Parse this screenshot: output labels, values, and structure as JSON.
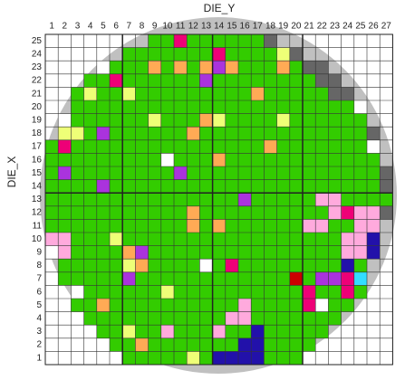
{
  "chart_data": {
    "type": "heatmap",
    "x_label": "DIE_Y",
    "y_label": "DIE_X",
    "x_categories": [
      1,
      2,
      3,
      4,
      5,
      6,
      7,
      8,
      9,
      10,
      11,
      12,
      13,
      14,
      15,
      16,
      17,
      18,
      19,
      20,
      21,
      22,
      23,
      24,
      25,
      26,
      27
    ],
    "y_categories": [
      25,
      24,
      23,
      22,
      21,
      20,
      19,
      18,
      17,
      16,
      15,
      14,
      13,
      12,
      11,
      10,
      9,
      8,
      7,
      6,
      5,
      4,
      3,
      2,
      1
    ],
    "wafer_color": "#c0c0c0",
    "cells": [
      [
        null,
        null,
        null,
        null,
        null,
        null,
        null,
        null,
        "#3c0",
        "#3c0",
        "#e07",
        "#3c0",
        "#3c0",
        "#3c0",
        "#3c0",
        "#3c0",
        "#3c0",
        "#666",
        null,
        null,
        null,
        null,
        null,
        null,
        null,
        null,
        null
      ],
      [
        null,
        null,
        null,
        null,
        null,
        null,
        "#3c0",
        "#3c0",
        "#3c0",
        "#3c0",
        "#3c0",
        "#3c0",
        "#3c0",
        "#e07",
        "#3c0",
        "#3c0",
        "#3c0",
        "#3c0",
        "#ef7",
        "#666",
        null,
        null,
        null,
        null,
        null,
        null,
        null
      ],
      [
        null,
        null,
        null,
        null,
        "#fff",
        "#3c0",
        "#3c0",
        "#3c0",
        "#fa5",
        "#3c0",
        "#fa5",
        "#3c0",
        "#fa5",
        "#a3d",
        "#fa5",
        "#3c0",
        "#3c0",
        "#3c0",
        "#fa5",
        "#3c0",
        "#666",
        "#666",
        null,
        null,
        null,
        null,
        null
      ],
      [
        null,
        null,
        null,
        "#3c0",
        "#3c0",
        "#e07",
        "#3c0",
        "#3c0",
        "#3c0",
        "#3c0",
        "#3c0",
        "#3c0",
        "#a3d",
        "#3c0",
        "#3c0",
        "#3c0",
        "#3c0",
        "#3c0",
        "#3c0",
        "#3c0",
        "#3c0",
        "#666",
        "#666",
        null,
        null,
        null,
        null
      ],
      [
        null,
        null,
        "#3c0",
        "#ef7",
        "#3c0",
        "#3c0",
        "#ef7",
        "#3c0",
        "#3c0",
        "#3c0",
        "#3c0",
        "#3c0",
        "#3c0",
        "#3c0",
        "#3c0",
        "#3c0",
        "#fa5",
        "#3c0",
        "#3c0",
        "#3c0",
        "#3c0",
        "#3c0",
        "#666",
        "#666",
        null,
        null,
        null
      ],
      [
        null,
        null,
        "#3c0",
        "#3c0",
        "#3c0",
        "#3c0",
        "#3c0",
        "#3c0",
        "#3c0",
        "#3c0",
        "#3c0",
        "#3c0",
        "#3c0",
        "#3c0",
        "#3c0",
        "#3c0",
        "#3c0",
        "#3c0",
        "#3c0",
        "#3c0",
        "#3c0",
        "#3c0",
        "#3c0",
        "#3c0",
        "#fff",
        null,
        null
      ],
      [
        null,
        "#fff",
        "#3c0",
        "#3c0",
        "#3c0",
        "#3c0",
        "#3c0",
        "#3c0",
        "#ef7",
        "#3c0",
        "#3c0",
        "#3c0",
        "#fa5",
        "#ef7",
        "#3c0",
        "#3c0",
        "#3c0",
        "#3c0",
        "#ef7",
        "#3c0",
        "#3c0",
        "#3c0",
        "#3c0",
        "#3c0",
        "#3c0",
        null,
        null
      ],
      [
        null,
        "#ef7",
        "#ef7",
        "#3c0",
        "#a3d",
        "#3c0",
        "#3c0",
        "#3c0",
        "#3c0",
        "#3c0",
        "#3c0",
        "#fa5",
        "#3c0",
        "#3c0",
        "#3c0",
        "#3c0",
        "#3c0",
        "#3c0",
        "#3c0",
        "#3c0",
        "#3c0",
        "#3c0",
        "#3c0",
        "#3c0",
        "#3c0",
        "#666",
        null
      ],
      [
        "#3c0",
        "#e07",
        "#3c0",
        "#3c0",
        "#3c0",
        "#3c0",
        "#3c0",
        "#3c0",
        "#3c0",
        "#3c0",
        "#3c0",
        "#3c0",
        "#3c0",
        "#3c0",
        "#3c0",
        "#3c0",
        "#3c0",
        "#fa5",
        "#3c0",
        "#3c0",
        "#3c0",
        "#3c0",
        "#3c0",
        "#3c0",
        "#3c0",
        "#fff",
        null
      ],
      [
        "#3c0",
        "#3c0",
        "#3c0",
        "#3c0",
        "#3c0",
        "#3c0",
        "#3c0",
        "#3c0",
        "#3c0",
        "#fff",
        "#3c0",
        "#3c0",
        "#3c0",
        "#fa5",
        "#3c0",
        "#3c0",
        "#3c0",
        "#3c0",
        "#3c0",
        "#3c0",
        "#3c0",
        "#3c0",
        "#3c0",
        "#3c0",
        "#3c0",
        "#3c0",
        null
      ],
      [
        "#3c0",
        "#a3d",
        "#3c0",
        "#3c0",
        "#3c0",
        "#3c0",
        "#3c0",
        "#3c0",
        "#3c0",
        "#3c0",
        "#a3d",
        "#3c0",
        "#3c0",
        "#3c0",
        "#3c0",
        "#3c0",
        "#3c0",
        "#3c0",
        "#3c0",
        "#3c0",
        "#3c0",
        "#3c0",
        "#3c0",
        "#3c0",
        "#3c0",
        "#3c0",
        "#666"
      ],
      [
        "#3c0",
        "#3c0",
        "#3c0",
        "#3c0",
        "#a3d",
        "#3c0",
        "#3c0",
        "#3c0",
        "#3c0",
        "#3c0",
        "#3c0",
        "#3c0",
        "#3c0",
        "#3c0",
        "#3c0",
        "#3c0",
        "#3c0",
        "#3c0",
        "#3c0",
        "#3c0",
        "#3c0",
        "#3c0",
        "#3c0",
        "#3c0",
        "#3c0",
        "#3c0",
        "#666"
      ],
      [
        "#3c0",
        "#3c0",
        "#3c0",
        "#3c0",
        "#3c0",
        "#3c0",
        "#3c0",
        "#3c0",
        "#3c0",
        "#3c0",
        "#3c0",
        "#3c0",
        "#3c0",
        "#3c0",
        "#3c0",
        "#a3d",
        "#3c0",
        "#3c0",
        "#3c0",
        "#3c0",
        "#3c0",
        "#fad",
        "#fad",
        "#3c0",
        "#3c0",
        "#3c0",
        "#3c0"
      ],
      [
        "#3c0",
        "#3c0",
        "#3c0",
        "#3c0",
        "#3c0",
        "#3c0",
        "#3c0",
        "#3c0",
        "#3c0",
        "#3c0",
        "#3c0",
        "#fa5",
        "#3c0",
        "#3c0",
        "#3c0",
        "#3c0",
        "#3c0",
        "#3c0",
        "#3c0",
        "#3c0",
        "#3c0",
        "#3c0",
        "#fad",
        "#e07",
        "#fad",
        "#fad",
        "#666"
      ],
      [
        "#3c0",
        "#3c0",
        "#3c0",
        "#3c0",
        "#3c0",
        "#3c0",
        "#3c0",
        "#3c0",
        "#3c0",
        "#3c0",
        "#3c0",
        "#fa5",
        "#3c0",
        "#fa5",
        "#3c0",
        "#3c0",
        "#3c0",
        "#3c0",
        "#3c0",
        "#3c0",
        "#fad",
        "#fad",
        "#3c0",
        "#3c0",
        "#fad",
        "#fad",
        null
      ],
      [
        "#fad",
        "#fad",
        "#3c0",
        "#3c0",
        "#3c0",
        "#ef7",
        "#3c0",
        "#3c0",
        "#3c0",
        "#3c0",
        "#3c0",
        "#3c0",
        "#3c0",
        "#3c0",
        "#3c0",
        "#3c0",
        "#3c0",
        "#3c0",
        "#3c0",
        "#3c0",
        "#3c0",
        "#3c0",
        "#3c0",
        "#fad",
        "#fad",
        "#21a",
        null
      ],
      [
        "#fff",
        "#fad",
        "#3c0",
        "#3c0",
        "#3c0",
        "#3c0",
        "#fa5",
        "#a3d",
        "#3c0",
        "#3c0",
        "#3c0",
        "#3c0",
        "#3c0",
        "#3c0",
        "#3c0",
        "#3c0",
        "#3c0",
        "#3c0",
        "#3c0",
        "#3c0",
        "#3c0",
        "#3c0",
        "#3c0",
        "#fad",
        "#fad",
        "#21a",
        null
      ],
      [
        null,
        "#3c0",
        "#3c0",
        "#3c0",
        "#3c0",
        "#3c0",
        "#ef7",
        "#fa5",
        "#3c0",
        "#3c0",
        "#3c0",
        "#3c0",
        "#fff",
        "#3c0",
        "#e07",
        "#3c0",
        "#3c0",
        "#3c0",
        "#3c0",
        "#3c0",
        "#3c0",
        "#3c0",
        "#3c0",
        "#21a",
        "#3c0",
        null,
        null
      ],
      [
        null,
        "#3c0",
        "#3c0",
        "#3c0",
        "#3c0",
        "#3c0",
        "#a3d",
        "#3c0",
        "#3c0",
        "#3c0",
        "#3c0",
        "#3c0",
        "#3c0",
        "#3c0",
        "#3c0",
        "#3c0",
        "#3c0",
        "#3c0",
        "#3c0",
        "#c00",
        "#3c0",
        "#a3d",
        "#a3d",
        "#e07",
        "#3df",
        null,
        null
      ],
      [
        null,
        null,
        "#fff",
        "#3c0",
        "#3c0",
        "#3c0",
        "#3c0",
        "#3c0",
        "#3c0",
        "#ef7",
        "#3c0",
        "#3c0",
        "#3c0",
        "#3c0",
        "#3c0",
        "#3c0",
        "#3c0",
        "#3c0",
        "#3c0",
        "#3c0",
        "#e07",
        "#3c0",
        "#3c0",
        "#e07",
        "#3c0",
        null,
        null
      ],
      [
        null,
        null,
        "#3c0",
        "#3c0",
        "#fa5",
        "#3c0",
        "#3c0",
        "#3c0",
        "#3c0",
        "#3c0",
        "#3c0",
        "#3c0",
        "#3c0",
        "#3c0",
        "#3c0",
        "#fad",
        "#3c0",
        "#3c0",
        "#3c0",
        "#3c0",
        "#e07",
        "#fff",
        "#3c0",
        "#3c0",
        null,
        null,
        null
      ],
      [
        null,
        null,
        null,
        "#3c0",
        "#3c0",
        "#3c0",
        "#3c0",
        "#3c0",
        "#3c0",
        "#3c0",
        "#3c0",
        "#3c0",
        "#3c0",
        "#3c0",
        "#fad",
        "#fad",
        "#3c0",
        "#3c0",
        "#3c0",
        "#3c0",
        "#3c0",
        "#3c0",
        "#3c0",
        null,
        null,
        null,
        null
      ],
      [
        null,
        null,
        null,
        null,
        "#3c0",
        "#3c0",
        "#ef7",
        "#3c0",
        "#3c0",
        "#fad",
        "#3c0",
        "#3c0",
        "#3c0",
        "#fad",
        "#3c0",
        "#3c0",
        "#21a",
        "#3c0",
        "#3c0",
        "#3c0",
        "#3c0",
        "#3c0",
        null,
        null,
        null,
        null,
        null
      ],
      [
        null,
        null,
        null,
        null,
        null,
        "#3c0",
        "#3c0",
        "#fa5",
        "#3c0",
        "#3c0",
        "#3c0",
        "#3c0",
        "#3c0",
        "#3c0",
        "#3c0",
        "#21a",
        "#21a",
        "#3c0",
        "#3c0",
        "#3c0",
        "#3c0",
        null,
        null,
        null,
        null,
        null,
        null
      ],
      [
        null,
        null,
        null,
        null,
        null,
        null,
        "#3c0",
        "#3c0",
        "#3c0",
        "#3c0",
        "#3c0",
        "#ef7",
        "#3c0",
        "#21a",
        "#21a",
        "#21a",
        "#21a",
        "#3c0",
        "#3c0",
        "#3c0",
        null,
        null,
        null,
        null,
        null,
        null,
        null
      ]
    ]
  }
}
